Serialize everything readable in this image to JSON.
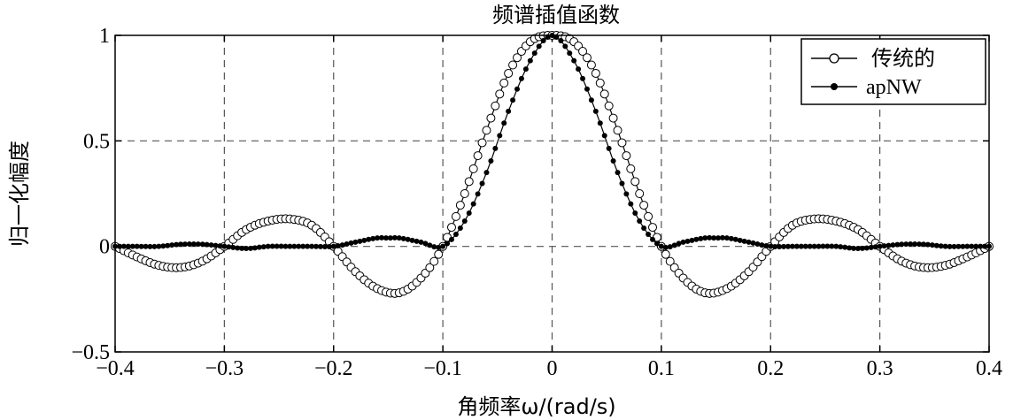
{
  "chart_data": {
    "type": "line",
    "title": "频谱插值函数",
    "xlabel": "角频率ω/(rad/s)",
    "ylabel": "归一化幅度",
    "xlim": [
      -0.4,
      0.4
    ],
    "ylim": [
      -0.5,
      1
    ],
    "x_ticks": [
      -0.4,
      -0.3,
      -0.2,
      -0.1,
      0,
      0.1,
      0.2,
      0.3,
      0.4
    ],
    "x_tick_labels": [
      "−0.4",
      "−0.3",
      "−0.2",
      "−0.1",
      "0",
      "0.1",
      "0.2",
      "0.3",
      "0.4"
    ],
    "y_ticks": [
      -0.5,
      0,
      0.5,
      1
    ],
    "y_tick_labels": [
      "−0.5",
      "0",
      "0.5",
      "1"
    ],
    "grid": true,
    "legend_position": "top-right",
    "series": [
      {
        "name": "传统的",
        "marker": "open-circle",
        "color": "#000000",
        "x": [
          -0.4,
          -0.38,
          -0.36,
          -0.34,
          -0.32,
          -0.3,
          -0.28,
          -0.26,
          -0.24,
          -0.22,
          -0.2,
          -0.18,
          -0.16,
          -0.14,
          -0.12,
          -0.1,
          -0.08,
          -0.06,
          -0.04,
          -0.02,
          0,
          0.02,
          0.04,
          0.06,
          0.08,
          0.1,
          0.12,
          0.14,
          0.16,
          0.18,
          0.2,
          0.22,
          0.24,
          0.26,
          0.28,
          0.3,
          0.32,
          0.34,
          0.36,
          0.38,
          0.4
        ],
        "values": [
          0,
          -0.05,
          -0.09,
          -0.1,
          -0.07,
          0,
          0.08,
          0.12,
          0.13,
          0.1,
          0,
          -0.12,
          -0.2,
          -0.22,
          -0.15,
          0,
          0.25,
          0.55,
          0.82,
          0.97,
          1,
          0.97,
          0.82,
          0.55,
          0.25,
          0,
          -0.15,
          -0.22,
          -0.2,
          -0.12,
          0,
          0.1,
          0.13,
          0.12,
          0.08,
          0,
          -0.07,
          -0.1,
          -0.09,
          -0.05,
          0
        ]
      },
      {
        "name": "apNW",
        "marker": "filled-dot",
        "color": "#000000",
        "x": [
          -0.4,
          -0.38,
          -0.36,
          -0.34,
          -0.32,
          -0.3,
          -0.28,
          -0.26,
          -0.24,
          -0.22,
          -0.2,
          -0.18,
          -0.16,
          -0.15,
          -0.14,
          -0.12,
          -0.1,
          -0.08,
          -0.06,
          -0.04,
          -0.02,
          0,
          0.02,
          0.04,
          0.06,
          0.08,
          0.1,
          0.12,
          0.14,
          0.15,
          0.16,
          0.18,
          0.2,
          0.22,
          0.24,
          0.26,
          0.28,
          0.3,
          0.32,
          0.34,
          0.36,
          0.38,
          0.4
        ],
        "values": [
          0,
          0,
          0,
          0.01,
          0.01,
          0,
          -0.01,
          0,
          0,
          0,
          0,
          0.02,
          0.04,
          0.04,
          0.04,
          0.02,
          0,
          0.12,
          0.35,
          0.64,
          0.88,
          1,
          0.88,
          0.64,
          0.35,
          0.12,
          0,
          0.02,
          0.04,
          0.04,
          0.04,
          0.02,
          0,
          0,
          0,
          0,
          -0.01,
          0,
          0.01,
          0.01,
          0,
          0,
          0
        ]
      }
    ]
  }
}
